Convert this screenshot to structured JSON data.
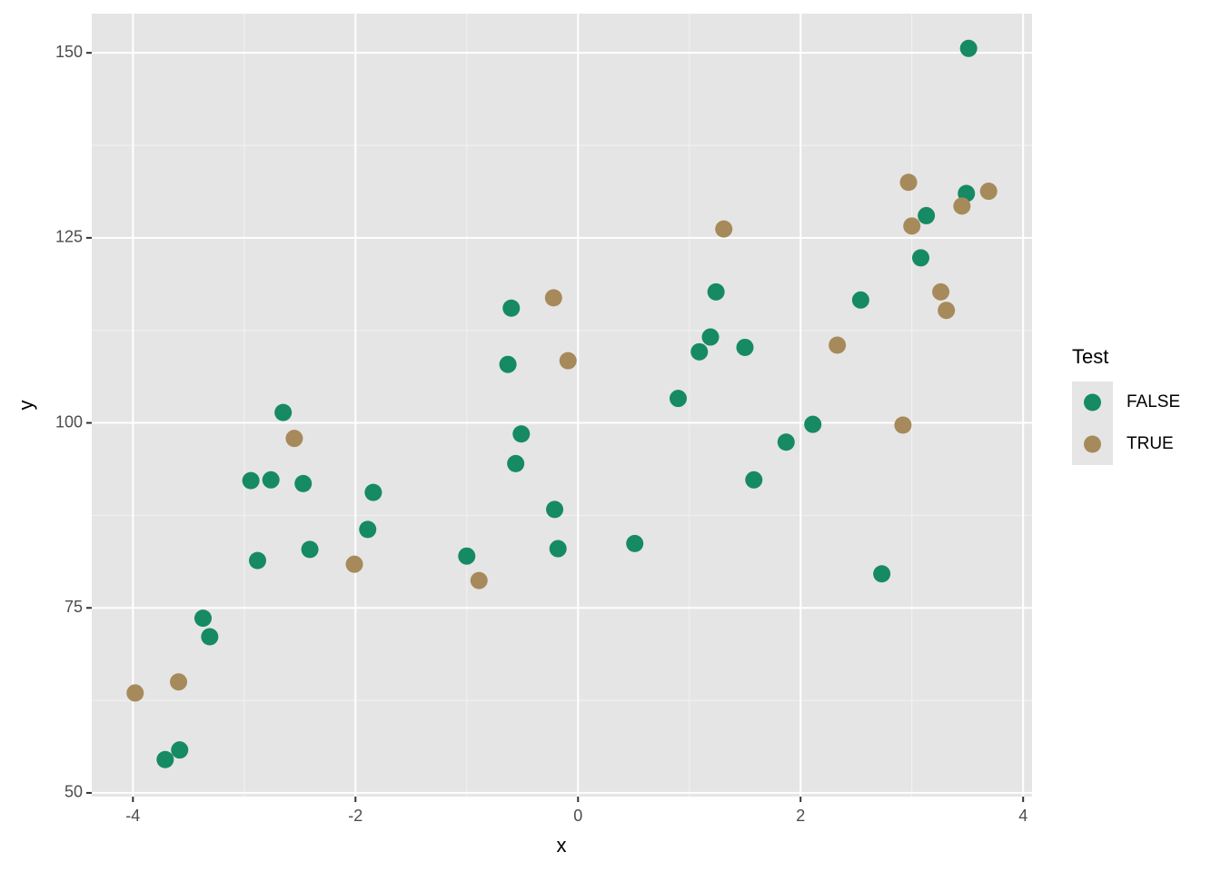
{
  "chart_data": {
    "type": "scatter",
    "x_label": "x",
    "y_label": "y",
    "legend_title": "Test",
    "xlim": [
      -4.37,
      4.08
    ],
    "ylim": [
      49.5,
      155.3
    ],
    "xticks": [
      -4,
      -2,
      0,
      2,
      4
    ],
    "yticks": [
      50,
      75,
      100,
      125,
      150
    ],
    "grid": true,
    "legend_position": "right",
    "series": [
      {
        "name": "FALSE",
        "color": "#168a62",
        "x": [
          3.51,
          3.49,
          3.13,
          3.08,
          2.54,
          1.24,
          1.19,
          1.09,
          1.5,
          0.9,
          2.11,
          1.87,
          1.58,
          2.73,
          0.51,
          -0.6,
          -0.63,
          -0.51,
          -0.56,
          -0.21,
          -0.18,
          -1.0,
          -2.65,
          -2.94,
          -2.76,
          -2.47,
          -1.84,
          -1.89,
          -2.41,
          -2.88,
          -3.37,
          -3.31,
          -3.71,
          -3.58
        ],
        "values": [
          150.6,
          131.0,
          128.0,
          122.3,
          116.6,
          117.7,
          111.6,
          109.6,
          110.2,
          103.3,
          99.8,
          97.4,
          92.3,
          79.6,
          83.7,
          115.5,
          107.9,
          98.5,
          94.5,
          88.3,
          83.0,
          82.0,
          101.4,
          92.2,
          92.3,
          91.8,
          90.6,
          85.6,
          82.9,
          81.4,
          73.6,
          71.1,
          54.5,
          55.8
        ]
      },
      {
        "name": "TRUE",
        "color": "#a68a5b",
        "x": [
          2.97,
          3.69,
          3.45,
          3.0,
          1.31,
          3.26,
          3.31,
          2.33,
          -0.22,
          -0.09,
          2.92,
          -2.55,
          -2.01,
          -0.89,
          -3.59,
          -3.98
        ],
        "values": [
          132.5,
          131.3,
          129.3,
          126.6,
          126.2,
          117.7,
          115.2,
          110.5,
          116.9,
          108.4,
          99.7,
          97.9,
          80.9,
          78.7,
          65.0,
          63.5
        ]
      }
    ]
  }
}
